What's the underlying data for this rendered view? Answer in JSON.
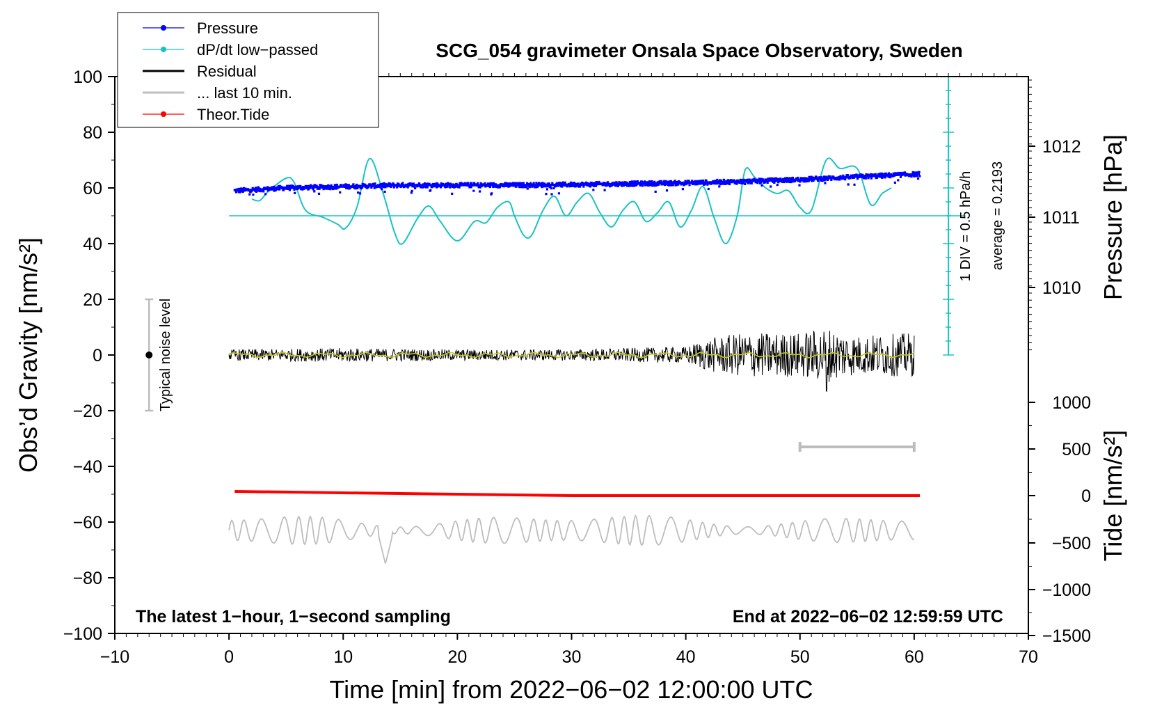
{
  "chart_data": {
    "type": "line",
    "title": "SCG_054 gravimeter Onsala Space Observatory, Sweden",
    "xlabel": "Time [min] from 2022−06−02 12:00:00 UTC",
    "ylabel_left": "Obs’d Gravity [nm/s²]",
    "ylabel_right_pressure": "Pressure [hPa]",
    "ylabel_right_tide": "Tide [nm/s²]",
    "xlim": [
      -10,
      70
    ],
    "ylim_left": [
      -100,
      100
    ],
    "x_ticks": [
      "−10",
      "0",
      "10",
      "20",
      "30",
      "40",
      "50",
      "60",
      "70"
    ],
    "y_left_ticks": [
      "100",
      "80",
      "60",
      "40",
      "20",
      "0",
      "−20",
      "−40",
      "−60",
      "−80",
      "−100"
    ],
    "pressure_ticks": [
      "1012",
      "1011",
      "1010"
    ],
    "tide_ticks": [
      "1000",
      "500",
      "0",
      "−500",
      "−1000",
      "−1500"
    ],
    "footer_left": "The latest 1−hour, 1−second sampling",
    "footer_right": "End at 2022−06−02 12:59:59 UTC",
    "pressure_scale_note": "1 DIV = 0.5 hPa/h",
    "average_note": "average = 0.2193",
    "noise_label": "Typical noise level",
    "legend": [
      {
        "label": "Pressure",
        "color": "#0000ff",
        "marker": true
      },
      {
        "label": "dP/dt low−passed",
        "color": "#19c3c3",
        "marker": true
      },
      {
        "label": "Residual",
        "color": "#000000",
        "marker": false
      },
      {
        "label": "... last 10 min.",
        "color": "#bdbdbd",
        "marker": false
      },
      {
        "label": "Theor.Tide",
        "color": "#ff0000",
        "marker": true
      }
    ],
    "series": [
      {
        "name": "Pressure (plotted, left-axis units)",
        "color": "#0000ff",
        "x": [
          0.5,
          5,
          10,
          15,
          20,
          25,
          30,
          35,
          40,
          45,
          50,
          55,
          60.5
        ],
        "values": [
          59,
          60,
          60.5,
          61,
          61,
          61,
          61.2,
          61.5,
          61.8,
          62.3,
          63,
          64,
          65
        ]
      },
      {
        "name": "dP/dt low-passed",
        "color": "#19c3c3",
        "x": [
          2,
          2.7,
          3.5,
          5,
          5.7,
          6.7,
          8.2,
          9.5,
          10.2,
          11.2,
          12.3,
          13.5,
          14.5,
          15.2,
          16.5,
          17.5,
          18.5,
          20,
          21.5,
          22.5,
          23.5,
          24.5,
          25,
          25.8,
          26.5,
          27.5,
          28.5,
          29.5,
          30.5,
          31.5,
          32.5,
          33.5,
          34.5,
          35.5,
          36.5,
          37.5,
          38.5,
          39.5,
          40.5,
          41.5,
          42.5,
          43.5,
          44.5,
          45.2,
          46,
          47,
          48,
          49,
          50,
          51,
          52.3,
          53.5,
          55,
          56.2,
          57.2,
          58
        ],
        "values": [
          56,
          55.5,
          59,
          63.5,
          62,
          52,
          49.5,
          47,
          45.5,
          53,
          70.5,
          58,
          44,
          40,
          49,
          53.5,
          48,
          41,
          48,
          47.5,
          53,
          55,
          50,
          43,
          43,
          52,
          57,
          50,
          55,
          58,
          51,
          46,
          52,
          55,
          48,
          51,
          55,
          46,
          52,
          60.5,
          49,
          40,
          50,
          66.5,
          64,
          60,
          58,
          59,
          53,
          52,
          70,
          67,
          67,
          54,
          58,
          60
        ]
      },
      {
        "name": "Residual",
        "color": "#000000",
        "x": [
          0,
          10,
          20,
          30,
          35,
          40,
          42,
          45,
          50,
          52.3,
          55,
          60
        ],
        "values": [
          0,
          0,
          0,
          0,
          0,
          0,
          0,
          0,
          0,
          0,
          0,
          0
        ],
        "amplitude": [
          2,
          2.5,
          2,
          2,
          2.5,
          3,
          6,
          8,
          8,
          10,
          7,
          8
        ]
      },
      {
        "name": "Residual smoothed",
        "color": "#c8c81e",
        "x": [
          0,
          60
        ],
        "values": [
          0,
          0
        ]
      },
      {
        "name": "Theor.Tide (left-axis units)",
        "color": "#ff0000",
        "x": [
          0.5,
          10,
          20,
          30,
          40,
          50,
          60.5
        ],
        "values": [
          -49,
          -49.5,
          -50,
          -50.5,
          -50.5,
          -50.5,
          -50.5
        ]
      },
      {
        "name": "... last 10 min. (grey trace, left-axis units)",
        "color": "#bdbdbd",
        "x": [
          0,
          13.7,
          60
        ],
        "values": [
          -63,
          -75,
          -63
        ],
        "amplitude": 6
      }
    ],
    "noise_bar": {
      "x": -7,
      "center": 0,
      "low": -20,
      "high": 20
    },
    "window_bar": {
      "x0": 50,
      "x1": 60,
      "y": -33
    },
    "dpdt_baseline": 50,
    "dpdt_scale_axis": {
      "x": 63,
      "y_top": 100,
      "y_bottom": 0,
      "divisions": 20
    }
  }
}
